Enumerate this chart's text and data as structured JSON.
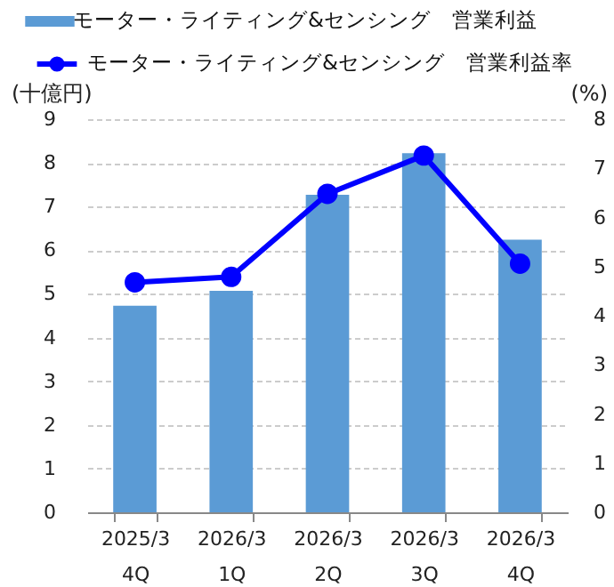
{
  "chart_data": {
    "type": "bar",
    "categories": [
      "2025/3\n4Q",
      "2026/3\n1Q",
      "2026/3\n2Q",
      "2026/3\n3Q",
      "2026/3\n4Q"
    ],
    "ylabel": "(十億円)",
    "y2label": "(%)",
    "series": [
      {
        "name": "モーター・ライティング&センシング　営業利益",
        "color": "#5b9bd5",
        "values": [
          4.73,
          5.07,
          7.27,
          8.22,
          6.24
        ]
      },
      {
        "name": "モーター・ライティング&センシング　営業利益率",
        "type": "line",
        "axis": "y2",
        "color": "#0000ff",
        "marker": "circle",
        "values": [
          4.68,
          4.79,
          6.48,
          7.26,
          5.06
        ]
      }
    ],
    "ylim": [
      0,
      9
    ],
    "yticks": [
      0,
      1,
      2,
      3,
      4,
      5,
      6,
      7,
      8,
      9
    ],
    "y2lim": [
      0,
      8
    ],
    "y2ticks": [
      0,
      1,
      2,
      3,
      4,
      5,
      6,
      7,
      8
    ],
    "grid": "y",
    "legend": "top"
  }
}
